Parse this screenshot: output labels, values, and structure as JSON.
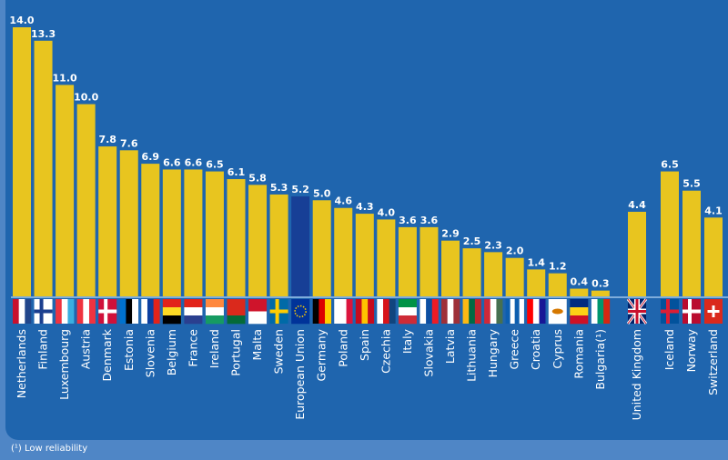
{
  "chart_data": {
    "type": "bar",
    "categories": [
      "Netherlands",
      "Finland",
      "Luxembourg",
      "Austria",
      "Denmark",
      "Estonia",
      "Slovenia",
      "Belgium",
      "France",
      "Ireland",
      "Portugal",
      "Malta",
      "Sweden",
      "European Union",
      "Germany",
      "Poland",
      "Spain",
      "Czechia",
      "Italy",
      "Slovakia",
      "Latvia",
      "Lithuania",
      "Hungary",
      "Greece",
      "Croatia",
      "Cyprus",
      "Romania",
      "Bulgaria(¹)",
      "United Kingdom",
      "Iceland",
      "Norway",
      "Switzerland"
    ],
    "values": [
      14.0,
      13.3,
      11.0,
      10.0,
      7.8,
      7.6,
      6.9,
      6.6,
      6.6,
      6.5,
      6.1,
      5.8,
      5.3,
      5.2,
      5.0,
      4.6,
      4.3,
      4.0,
      3.6,
      3.6,
      2.9,
      2.5,
      2.3,
      2.0,
      1.4,
      1.2,
      0.4,
      0.3,
      4.4,
      6.5,
      5.5,
      4.1
    ],
    "value_labels": [
      "14.0",
      "13.3",
      "11.0",
      "10.0",
      "7.8",
      "7.6",
      "6.9",
      "6.6",
      "6.6",
      "6.5",
      "6.1",
      "5.8",
      "5.3",
      "5.2",
      "5.0",
      "4.6",
      "4.3",
      "4.0",
      "3.6",
      "3.6",
      "2.9",
      "2.5",
      "2.3",
      "2.0",
      "1.4",
      "1.2",
      "0.4",
      "0.3",
      "4.4",
      "6.5",
      "5.5",
      "4.1"
    ],
    "highlight_category": "European Union",
    "ylim": [
      0,
      14
    ],
    "grid": false,
    "colors": {
      "bar": "#e8c51f",
      "highlight": "#173f96",
      "background": "#1f65ae",
      "label": "#ffffff"
    },
    "footnote": "(¹) Low reliability"
  }
}
